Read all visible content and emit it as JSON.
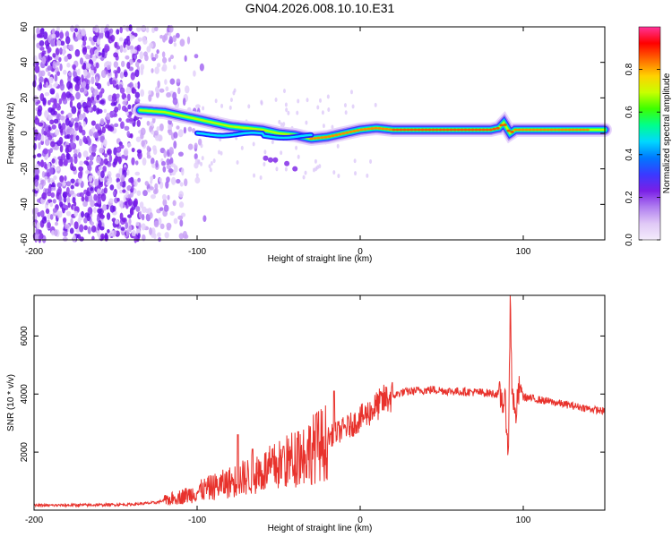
{
  "title": "GN04.2026.008.10.10.E31",
  "chart_data": [
    {
      "type": "heatmap",
      "name": "spectrogram",
      "xlabel": "Height of straight line (km)",
      "ylabel": "Frequency (Hz)",
      "xlim": [
        -200,
        150
      ],
      "ylim": [
        -60,
        60
      ],
      "x_ticks": [
        -200,
        -100,
        0,
        100
      ],
      "y_ticks": [
        -60,
        -40,
        -20,
        0,
        20,
        40,
        60
      ],
      "colorbar": {
        "label": "Normalized spectral amplitude",
        "range": [
          0.0,
          1.0
        ],
        "ticks": [
          0.0,
          0.2,
          0.4,
          0.6,
          0.8
        ],
        "tick_labels": [
          "0.0",
          "0.2",
          "0.4",
          "0.6",
          "0.8"
        ],
        "colors": [
          "#f4ecfb",
          "#e0c8f6",
          "#b07ef0",
          "#7a1fe6",
          "#3a3aff",
          "#0078ff",
          "#00d8ff",
          "#00ff8c",
          "#3cff00",
          "#c8ff00",
          "#ffd200",
          "#ff6a00",
          "#ff0000",
          "#ff3399"
        ]
      },
      "track": {
        "x": [
          -135,
          -120,
          -110,
          -100,
          -90,
          -80,
          -70,
          -60,
          -50,
          -40,
          -30,
          -20,
          -10,
          0,
          10,
          20,
          40,
          60,
          80,
          85,
          88,
          92,
          95,
          100,
          120,
          150
        ],
        "y": [
          13,
          12,
          10,
          8,
          6,
          4,
          3,
          2,
          0,
          -1,
          -3,
          -2,
          0,
          2,
          3,
          2,
          2,
          2,
          2,
          3,
          6,
          0,
          2,
          2,
          2,
          2
        ]
      }
    },
    {
      "type": "line",
      "name": "snr",
      "xlabel": "Height of straight line (km)",
      "ylabel": "SNR (10 * v/v)",
      "xlim": [
        -200,
        150
      ],
      "ylim": [
        0,
        7400
      ],
      "x_ticks": [
        -200,
        -100,
        0,
        100
      ],
      "y_ticks": [
        2000,
        4000,
        6000
      ],
      "color": "#e8322c",
      "series": [
        {
          "name": "SNR",
          "x": [
            -200,
            -180,
            -160,
            -140,
            -125,
            -115,
            -105,
            -95,
            -85,
            -75,
            -65,
            -55,
            -45,
            -35,
            -25,
            -15,
            -5,
            5,
            15,
            25,
            35,
            45,
            55,
            65,
            75,
            85,
            89,
            91,
            92,
            93,
            95,
            98,
            100,
            110,
            120,
            130,
            140,
            150
          ],
          "y": [
            160,
            170,
            180,
            200,
            260,
            420,
            560,
            760,
            920,
            1100,
            1300,
            1500,
            1750,
            2050,
            2350,
            2650,
            2950,
            3350,
            3800,
            4050,
            4120,
            4150,
            4100,
            4080,
            4050,
            4000,
            3600,
            2000,
            7400,
            4400,
            3200,
            4300,
            3900,
            3800,
            3700,
            3600,
            3500,
            3400
          ]
        }
      ],
      "spikes": [
        {
          "x": -75,
          "y": 2600
        },
        {
          "x": -66,
          "y": 2100
        },
        {
          "x": -47,
          "y": 2200
        },
        {
          "x": -16,
          "y": 4100
        },
        {
          "x": -27,
          "y": 3300
        },
        {
          "x": -38,
          "y": 2700
        }
      ]
    }
  ]
}
